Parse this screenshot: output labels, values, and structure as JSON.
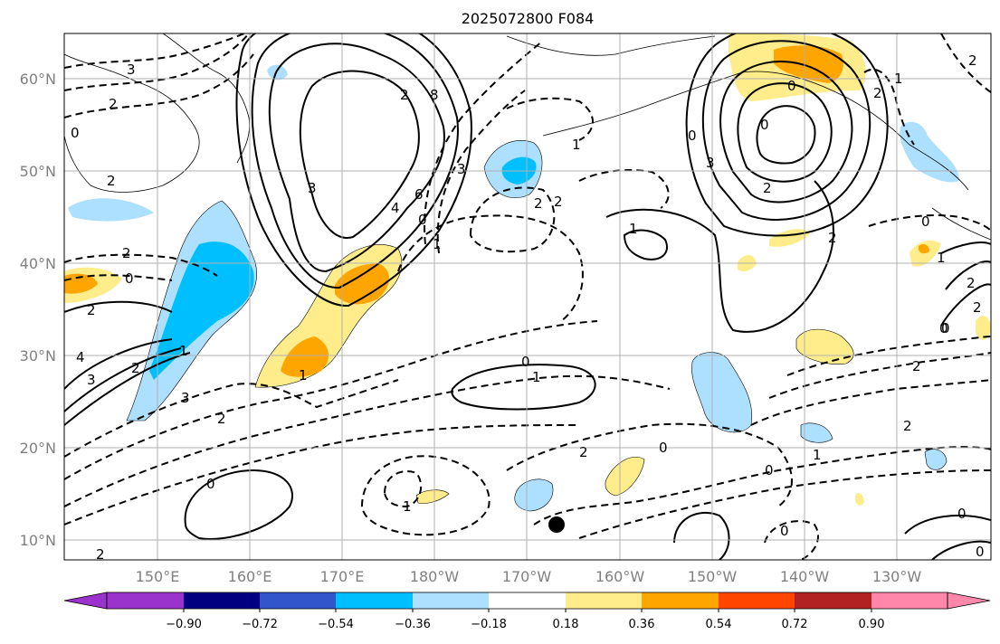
{
  "title": "2025072800 F084",
  "map": {
    "lon_labels": [
      "150°E",
      "160°E",
      "170°E",
      "180°W",
      "170°W",
      "160°W",
      "150°W",
      "140°W",
      "130°W"
    ],
    "lat_labels": [
      "60°N",
      "50°N",
      "40°N",
      "30°N",
      "20°N",
      "10°N"
    ],
    "contour_labels": [
      "3",
      "2",
      "0",
      "2",
      "2",
      "0",
      "2",
      "3",
      "4",
      "2",
      "1",
      "3",
      "2",
      "1",
      "3",
      "2",
      "4",
      "8",
      "6",
      "0",
      "3",
      "1",
      "2",
      "2",
      "1",
      "0",
      "2",
      "0",
      "0",
      "3",
      "2",
      "0",
      "1",
      "1",
      "0",
      "2",
      "0",
      "1",
      "2",
      "1",
      "0",
      "2",
      "0",
      "0",
      "0",
      "2",
      "0",
      "2",
      "1",
      "0",
      "2",
      "1",
      "2",
      "2",
      "0"
    ],
    "shading_legend": {
      "colors": [
        "#9933cc",
        "#000080",
        "#3355cc",
        "#00bfff",
        "#addfff",
        "#ffffff",
        "#ffec8b",
        "#ffa500",
        "#ff4500",
        "#b22222",
        "#ff88aa",
        "#ff88aa"
      ],
      "labels": [
        "−0.90",
        "−0.72",
        "−0.54",
        "−0.36",
        "−0.18",
        "0.18",
        "0.36",
        "0.54",
        "0.72",
        "0.90"
      ],
      "extend": "both"
    },
    "marker": "black-dot"
  }
}
